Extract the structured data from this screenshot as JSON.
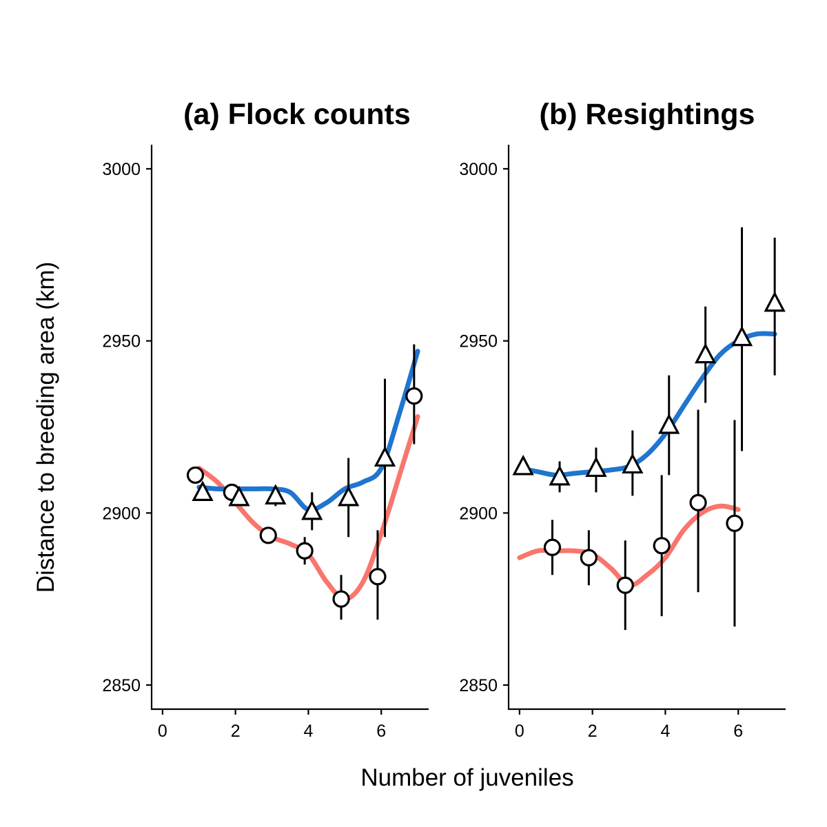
{
  "ylabel": "Distance to breeding area (km)",
  "xlabel": "Number of juveniles",
  "colors": {
    "circle_line": "#f8766d",
    "triangle_line": "#1f75cf",
    "marker_fill": "#ffffff",
    "marker_stroke": "#000000"
  },
  "chart_data": [
    {
      "type": "scatter",
      "title": "(a) Flock counts",
      "xlim": [
        -0.3,
        7.3
      ],
      "ylim": [
        2843,
        3007
      ],
      "x_ticks": [
        0,
        2,
        4,
        6
      ],
      "y_ticks": [
        2850,
        2900,
        2950,
        3000
      ],
      "grid": false,
      "series": [
        {
          "marker": "circle",
          "line_color": "#f8766d",
          "points": [
            {
              "x": 0.9,
              "y": 2911,
              "low": 2911,
              "high": 2911
            },
            {
              "x": 1.9,
              "y": 2906,
              "low": 2906,
              "high": 2906
            },
            {
              "x": 2.9,
              "y": 2893.5,
              "low": 2893.5,
              "high": 2893.5
            },
            {
              "x": 3.9,
              "y": 2889,
              "low": 2885,
              "high": 2893
            },
            {
              "x": 4.9,
              "y": 2875,
              "low": 2869,
              "high": 2882
            },
            {
              "x": 5.9,
              "y": 2881.5,
              "low": 2869,
              "high": 2895
            },
            {
              "x": 6.9,
              "y": 2934,
              "low": 2920,
              "high": 2949
            }
          ],
          "smooth": [
            [
              1.0,
              2913
            ],
            [
              1.5,
              2909
            ],
            [
              2.0,
              2903
            ],
            [
              2.5,
              2897
            ],
            [
              3.0,
              2893
            ],
            [
              3.5,
              2891
            ],
            [
              4.0,
              2888
            ],
            [
              4.5,
              2880
            ],
            [
              5.0,
              2875
            ],
            [
              5.5,
              2880
            ],
            [
              6.0,
              2894
            ],
            [
              6.5,
              2911
            ],
            [
              7.0,
              2928
            ]
          ]
        },
        {
          "marker": "triangle",
          "line_color": "#1f75cf",
          "points": [
            {
              "x": 1.1,
              "y": 2906,
              "low": 2906,
              "high": 2906
            },
            {
              "x": 2.1,
              "y": 2904.5,
              "low": 2904.5,
              "high": 2904.5
            },
            {
              "x": 3.1,
              "y": 2905,
              "low": 2902,
              "high": 2905
            },
            {
              "x": 4.1,
              "y": 2900.5,
              "low": 2895,
              "high": 2906
            },
            {
              "x": 5.1,
              "y": 2904.5,
              "low": 2893,
              "high": 2916
            },
            {
              "x": 6.1,
              "y": 2916,
              "low": 2893,
              "high": 2939
            }
          ],
          "smooth": [
            [
              1.0,
              2907.5
            ],
            [
              1.5,
              2907
            ],
            [
              2.0,
              2907
            ],
            [
              2.5,
              2907
            ],
            [
              3.0,
              2907
            ],
            [
              3.5,
              2906
            ],
            [
              4.0,
              2901
            ],
            [
              4.5,
              2903
            ],
            [
              5.0,
              2907
            ],
            [
              5.5,
              2909
            ],
            [
              6.0,
              2913
            ],
            [
              6.5,
              2929
            ],
            [
              7.0,
              2947
            ]
          ]
        }
      ]
    },
    {
      "type": "scatter",
      "title": "(b) Resightings",
      "xlim": [
        -0.3,
        7.3
      ],
      "ylim": [
        2843,
        3007
      ],
      "x_ticks": [
        0,
        2,
        4,
        6
      ],
      "y_ticks": [
        2850,
        2900,
        2950,
        3000
      ],
      "grid": false,
      "series": [
        {
          "marker": "circle",
          "line_color": "#f8766d",
          "points": [
            {
              "x": 0.9,
              "y": 2890,
              "low": 2882,
              "high": 2898
            },
            {
              "x": 1.9,
              "y": 2887,
              "low": 2879,
              "high": 2895
            },
            {
              "x": 2.9,
              "y": 2879,
              "low": 2866,
              "high": 2892
            },
            {
              "x": 3.9,
              "y": 2890.5,
              "low": 2870,
              "high": 2911
            },
            {
              "x": 4.9,
              "y": 2903,
              "low": 2877,
              "high": 2930
            },
            {
              "x": 5.9,
              "y": 2897,
              "low": 2867,
              "high": 2927
            }
          ],
          "smooth": [
            [
              0.0,
              2887
            ],
            [
              0.5,
              2889
            ],
            [
              1.0,
              2889
            ],
            [
              1.5,
              2889
            ],
            [
              2.0,
              2888
            ],
            [
              2.5,
              2884
            ],
            [
              3.0,
              2879
            ],
            [
              3.5,
              2882
            ],
            [
              4.0,
              2887
            ],
            [
              4.5,
              2895
            ],
            [
              5.0,
              2900
            ],
            [
              5.5,
              2902
            ],
            [
              6.0,
              2901
            ]
          ]
        },
        {
          "marker": "triangle",
          "line_color": "#1f75cf",
          "points": [
            {
              "x": 0.1,
              "y": 2913.5,
              "low": 2913.5,
              "high": 2913.5
            },
            {
              "x": 1.1,
              "y": 2910.5,
              "low": 2906,
              "high": 2915
            },
            {
              "x": 2.1,
              "y": 2913,
              "low": 2906,
              "high": 2919
            },
            {
              "x": 3.1,
              "y": 2914,
              "low": 2905,
              "high": 2924
            },
            {
              "x": 4.1,
              "y": 2925.5,
              "low": 2911,
              "high": 2940
            },
            {
              "x": 5.1,
              "y": 2946,
              "low": 2932,
              "high": 2960
            },
            {
              "x": 6.1,
              "y": 2951,
              "low": 2918,
              "high": 2983
            },
            {
              "x": 7.0,
              "y": 2961,
              "low": 2940,
              "high": 2980
            }
          ],
          "smooth": [
            [
              0.0,
              2913
            ],
            [
              0.5,
              2912
            ],
            [
              1.0,
              2911
            ],
            [
              1.5,
              2911.5
            ],
            [
              2.0,
              2912
            ],
            [
              2.5,
              2912.5
            ],
            [
              3.0,
              2913.5
            ],
            [
              3.5,
              2917
            ],
            [
              4.0,
              2923
            ],
            [
              4.5,
              2931
            ],
            [
              5.0,
              2939
            ],
            [
              5.5,
              2946
            ],
            [
              6.0,
              2950
            ],
            [
              6.5,
              2952
            ],
            [
              7.0,
              2952
            ]
          ]
        }
      ]
    }
  ]
}
